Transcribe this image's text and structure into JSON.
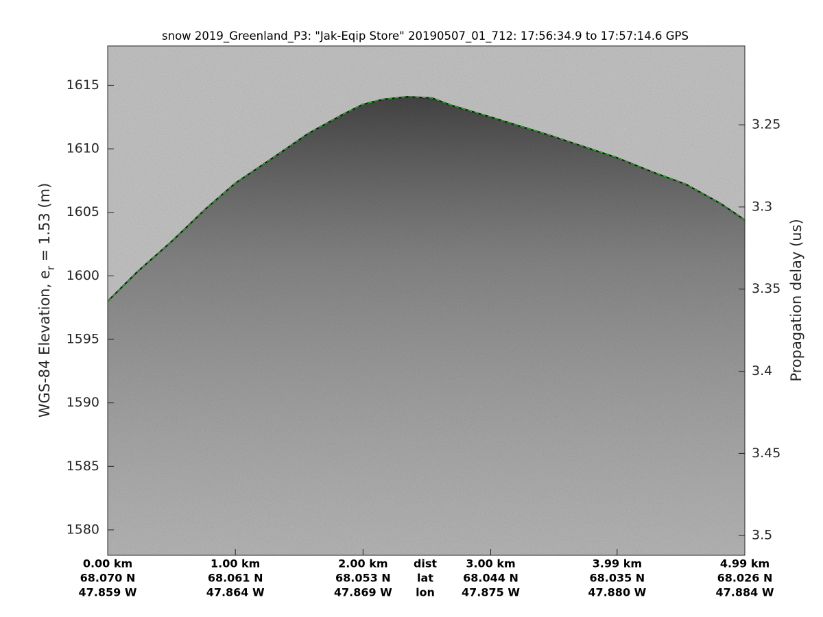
{
  "chart_data": {
    "type": "line",
    "title": "snow 2019_Greenland_P3: \"Jak-Eqip Store\"  20190507_01_712: 17:56:34.9 to 17:57:14.6 GPS",
    "ylabel": {
      "before": "WGS-84 Elevation, e",
      "subscript": "r",
      "after": " = 1.53 (m)"
    },
    "y2label": "Propagation delay (us)",
    "xlim": [
      0,
      4.99
    ],
    "ylim": [
      1578,
      1618.1
    ],
    "y2lim": [
      3.512,
      3.202
    ],
    "yticks": [
      1580,
      1585,
      1590,
      1595,
      1600,
      1605,
      1610,
      1615
    ],
    "y2ticks": [
      3.25,
      3.3,
      3.35,
      3.4,
      3.45,
      3.5
    ],
    "xticks": [
      {
        "value": 0,
        "label": "0.00 km"
      },
      {
        "value": 1.0,
        "label": "1.00 km"
      },
      {
        "value": 2.0,
        "label": "2.00 km"
      },
      {
        "value": 3.0,
        "label": "3.00 km"
      },
      {
        "value": 3.99,
        "label": "3.99 km"
      },
      {
        "value": 4.99,
        "label": "4.99 km"
      }
    ],
    "xtick_lat": [
      "68.070 N",
      "68.061 N",
      "68.053 N",
      "68.044 N",
      "68.035 N",
      "68.026 N"
    ],
    "xtick_lon": [
      "47.859 W",
      "47.864 W",
      "47.869 W",
      "47.875 W",
      "47.880 W",
      "47.884 W"
    ],
    "xtick_row_labels": [
      "dist",
      "lat",
      "lon"
    ],
    "series": [
      {
        "color": "#22cc22",
        "dashed": true,
        "x": [
          0,
          0.23,
          0.5,
          0.77,
          1.0,
          1.31,
          1.57,
          1.84,
          2.0,
          2.16,
          2.35,
          2.54,
          2.7,
          3.0,
          3.45,
          3.99,
          4.26,
          4.53,
          4.8,
          4.99
        ],
        "values": [
          1598.0,
          1600.3,
          1602.7,
          1605.3,
          1607.3,
          1609.4,
          1611.2,
          1612.7,
          1613.5,
          1613.9,
          1614.1,
          1614.0,
          1613.4,
          1612.5,
          1611.1,
          1609.3,
          1608.2,
          1607.2,
          1605.7,
          1604.4
        ]
      }
    ]
  }
}
